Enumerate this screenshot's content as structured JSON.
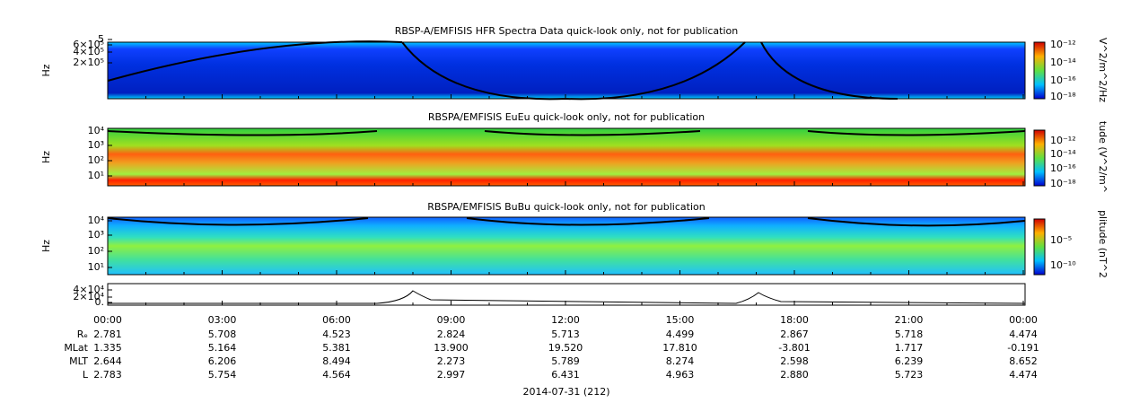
{
  "panels": [
    {
      "title": "RBSP-A/EMFISIS  HFR Spectra Data quick-look only, not for publication",
      "ylabel": "Hz",
      "yticks": [
        "5",
        "6×10⁵",
        "4×10⁵",
        "2×10⁵"
      ],
      "colorbar_label": "V^2/m^2/Hz",
      "colorbar_ticks": [
        "10⁻¹²",
        "10⁻¹⁴",
        "10⁻¹⁶",
        "10⁻¹⁸"
      ]
    },
    {
      "title": "RBSPA/EMFISIS  EuEu quick-look only, not for publication",
      "ylabel": "Hz",
      "yticks": [
        "10⁴",
        "10³",
        "10²",
        "10¹"
      ],
      "colorbar_label": "tude (V^2/m^",
      "colorbar_ticks": [
        "10⁻¹²",
        "10⁻¹⁴",
        "10⁻¹⁶",
        "10⁻¹⁸"
      ]
    },
    {
      "title": "RBSPA/EMFISIS  BuBu quick-look only, not for publication",
      "ylabel": "Hz",
      "yticks": [
        "10⁴",
        "10³",
        "10²",
        "10¹"
      ],
      "colorbar_label": "plitude (nT^2",
      "colorbar_ticks": [
        "10⁻⁵",
        "10⁻¹⁰"
      ]
    },
    {
      "yticks": [
        "4×10⁴",
        "2×10⁴",
        "0."
      ]
    }
  ],
  "time_ticks": [
    "00:00",
    "03:00",
    "06:00",
    "09:00",
    "12:00",
    "15:00",
    "18:00",
    "21:00",
    "00:00"
  ],
  "ephemeris": [
    {
      "label": "Rₑ",
      "values": [
        "2.781",
        "5.708",
        "4.523",
        "2.824",
        "5.713",
        "4.499",
        "2.867",
        "5.718",
        "4.474"
      ]
    },
    {
      "label": "MLat",
      "values": [
        "1.335",
        "5.164",
        "5.381",
        "13.900",
        "19.520",
        "17.810",
        "-3.801",
        "1.717",
        "-0.191"
      ]
    },
    {
      "label": "MLT",
      "values": [
        "2.644",
        "6.206",
        "8.494",
        "2.273",
        "5.789",
        "8.274",
        "2.598",
        "6.239",
        "8.652"
      ]
    },
    {
      "label": "L",
      "values": [
        "2.783",
        "5.754",
        "4.564",
        "2.997",
        "6.431",
        "4.963",
        "2.880",
        "5.723",
        "4.474"
      ]
    }
  ],
  "date": "2014-07-31 (212)"
}
